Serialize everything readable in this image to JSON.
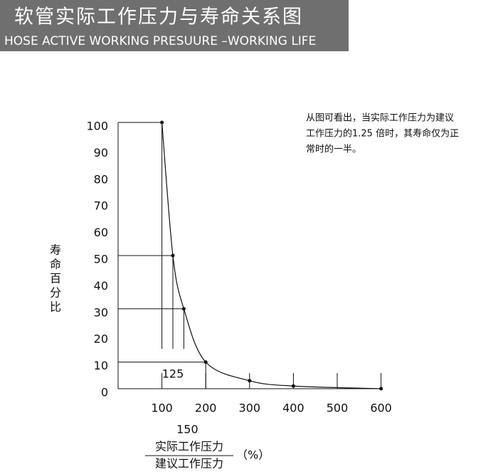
{
  "header": {
    "title": "软管实际工作压力与寿命关系图",
    "subtitle": "HOSE ACTIVE WORKING PRESUURE –WORKING LIFE"
  },
  "chart_data": {
    "type": "line",
    "ylabel": "寿命百分比",
    "xlabel_numerator": "实际工作压力",
    "xlabel_denominator": "建议工作压力",
    "xlabel_unit": "（%）",
    "note": [
      "从图可看出，当实际工作压力为建议",
      "工作压力的1.25 倍时，其寿命仅为正",
      "常时的一半。"
    ],
    "annotations": [
      {
        "x": 125,
        "text": "125"
      },
      {
        "x": 150,
        "text": "150"
      }
    ],
    "x": [
      100,
      125,
      150,
      200,
      300,
      400,
      600
    ],
    "series": [
      {
        "color": "#111111",
        "values": [
          100,
          50,
          30,
          10,
          3,
          1,
          0
        ]
      }
    ],
    "xlim": [
      0,
      600
    ],
    "xticks": [
      100,
      200,
      300,
      400,
      500,
      600
    ],
    "ylim": [
      0,
      100
    ],
    "yticks": [
      0,
      10,
      20,
      30,
      40,
      50,
      60,
      70,
      80,
      90,
      100
    ]
  }
}
